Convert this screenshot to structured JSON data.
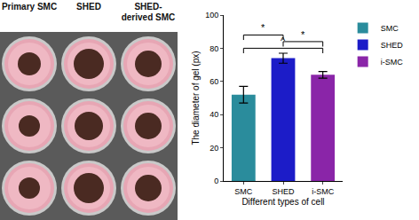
{
  "photo": {
    "labels": [
      "Primary SMC",
      "SHED",
      "SHED-derived SMC"
    ]
  },
  "chart_data": {
    "type": "bar",
    "categories": [
      "SMC",
      "SHED",
      "i-SMC"
    ],
    "series": [
      {
        "name": "SMC",
        "color": "#2a8c9c",
        "values": [
          52,
          null,
          null
        ],
        "errors": [
          5,
          null,
          null
        ]
      },
      {
        "name": "SHED",
        "color": "#1c1cc8",
        "values": [
          null,
          74,
          null
        ],
        "errors": [
          null,
          3,
          null
        ]
      },
      {
        "name": "i-SMC",
        "color": "#8a25a8",
        "values": [
          null,
          null,
          64
        ],
        "errors": [
          null,
          null,
          2
        ]
      }
    ],
    "x_label": "Different types of cell",
    "y_label": "The diameter of gel (px)",
    "ylim": [
      0,
      100
    ],
    "yticks": [
      0,
      20,
      40,
      60,
      80,
      100
    ],
    "legend": "top right",
    "comparisons": [
      {
        "from": "SMC",
        "to": "SHED",
        "y": 88,
        "label": "*"
      },
      {
        "from": "SMC",
        "to": "i-SMC",
        "y": 80,
        "label": "^"
      },
      {
        "from": "SHED",
        "to": "i-SMC",
        "y": 84,
        "label": "*"
      }
    ]
  }
}
